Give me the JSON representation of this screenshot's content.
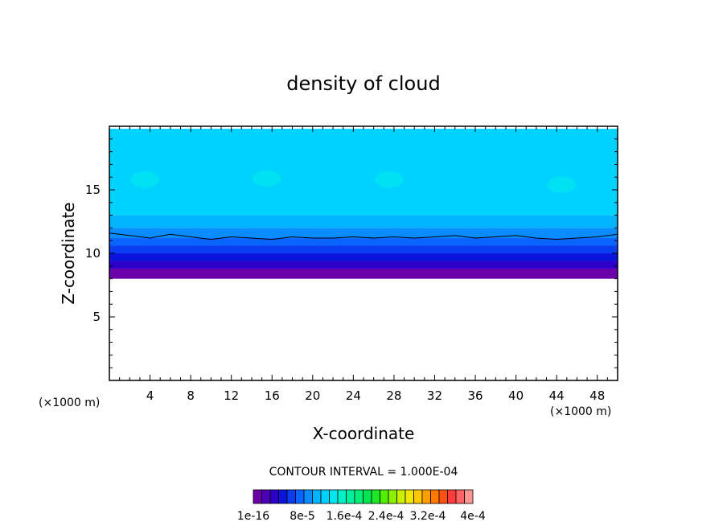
{
  "chart_data": {
    "type": "heatmap",
    "title": "density of cloud",
    "xlabel": "X-coordinate",
    "ylabel": "Z-coordinate",
    "x_unit": "(×1000 m)",
    "z_unit": "(×1000 m)",
    "xlim": [
      0,
      50
    ],
    "ylim": [
      0,
      20
    ],
    "x_ticks": [
      4,
      8,
      12,
      16,
      20,
      24,
      28,
      32,
      36,
      40,
      44,
      48
    ],
    "y_ticks": [
      5,
      10,
      15
    ],
    "contour_interval_text": "CONTOUR INTERVAL = 1.000E-04",
    "colorbar_labels": [
      "1e-16",
      "8e-5",
      "1.6e-4",
      "2.4e-4",
      "3.2e-4",
      "4e-4"
    ],
    "colorbar_range": [
      0,
      0.0004
    ],
    "colorbar_colors": [
      "#6a00a8",
      "#4b00b4",
      "#2c00c8",
      "#0a14dc",
      "#0a3cf0",
      "#0a64ff",
      "#0a8cff",
      "#00b4ff",
      "#00d2ff",
      "#00e6f0",
      "#00f0c8",
      "#00f0a0",
      "#00f078",
      "#00e650",
      "#1ee628",
      "#50f000",
      "#8cf000",
      "#c8f000",
      "#f0e600",
      "#ffc800",
      "#ffa000",
      "#ff7800",
      "#ff5014",
      "#ff3c3c",
      "#ff6464",
      "#ff9696"
    ],
    "field_layers": [
      {
        "z_bottom": 8.0,
        "z_top": 8.8,
        "value": 5e-06,
        "color": "#6a00a8"
      },
      {
        "z_bottom": 8.8,
        "z_top": 9.4,
        "value": 1.2e-05,
        "color": "#2c00c8"
      },
      {
        "z_bottom": 9.4,
        "z_top": 10.0,
        "value": 2e-05,
        "color": "#0a14dc"
      },
      {
        "z_bottom": 10.0,
        "z_top": 10.6,
        "value": 3e-05,
        "color": "#0a3cf0"
      },
      {
        "z_bottom": 10.6,
        "z_top": 11.2,
        "value": 4e-05,
        "color": "#0a64ff"
      },
      {
        "z_bottom": 11.2,
        "z_top": 12.0,
        "value": 5e-05,
        "color": "#0a8cff"
      },
      {
        "z_bottom": 12.0,
        "z_top": 13.0,
        "value": 6e-05,
        "color": "#00b4ff"
      },
      {
        "z_bottom": 13.0,
        "z_top": 19.8,
        "value": 7e-05,
        "color": "#00d2ff"
      }
    ],
    "contour_line": {
      "value": 0.0001,
      "x": [
        0,
        2,
        4,
        6,
        8,
        10,
        12,
        14,
        16,
        18,
        20,
        22,
        24,
        26,
        28,
        30,
        32,
        34,
        36,
        38,
        40,
        42,
        44,
        46,
        48,
        50
      ],
      "z": [
        11.6,
        11.4,
        11.2,
        11.5,
        11.3,
        11.1,
        11.3,
        11.2,
        11.1,
        11.3,
        11.2,
        11.2,
        11.3,
        11.2,
        11.3,
        11.2,
        11.3,
        11.4,
        11.2,
        11.3,
        11.4,
        11.2,
        11.1,
        11.2,
        11.3,
        11.5
      ]
    },
    "patches": [
      {
        "x": 3.5,
        "z": 15.8,
        "color": "#00e6f0"
      },
      {
        "x": 27.5,
        "z": 15.8,
        "color": "#00e6f0"
      },
      {
        "x": 44.5,
        "z": 15.4,
        "color": "#00e6f0"
      },
      {
        "x": 15.5,
        "z": 15.9,
        "color": "#00e6f0"
      }
    ]
  }
}
